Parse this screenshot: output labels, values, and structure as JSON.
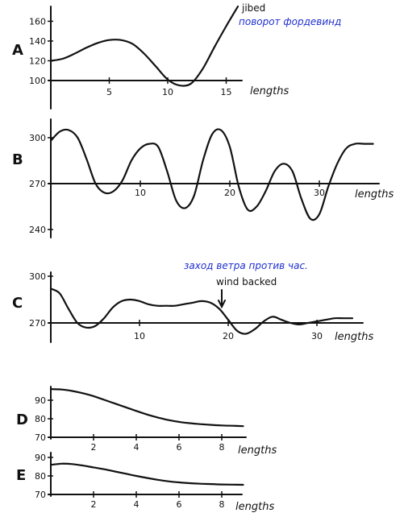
{
  "chart_data": [
    {
      "id": "A",
      "type": "line",
      "panel_label": "A",
      "x_unit_label": "lengths",
      "xlim": [
        0,
        16
      ],
      "ylim": [
        100,
        175
      ],
      "x_ticks": [
        5,
        10,
        15
      ],
      "y_ticks": [
        100,
        120,
        140,
        160
      ],
      "x_values": [
        0,
        1,
        2,
        3,
        4,
        5,
        6,
        7,
        8,
        9,
        10,
        11,
        12,
        13,
        14,
        15,
        16
      ],
      "series": [
        {
          "values": [
            120,
            122,
            127,
            133,
            138,
            141,
            141,
            137,
            127,
            114,
            101,
            95,
            97,
            112,
            134,
            155,
            175
          ]
        }
      ],
      "annotations": [
        {
          "x": 16,
          "y": 175,
          "text": "jibed",
          "color": "#111111"
        },
        {
          "x": 16,
          "y": 175,
          "text": "поворот фордевинд",
          "color": "#1f2fd0"
        }
      ]
    },
    {
      "id": "B",
      "type": "line",
      "panel_label": "B",
      "x_unit_label": "lengths",
      "xlim": [
        0,
        36
      ],
      "ylim": [
        235,
        310
      ],
      "x_ticks": [
        10,
        20,
        30
      ],
      "x_tick_labels": [
        "10",
        "20",
        "30"
      ],
      "y_ticks": [
        240,
        270,
        300
      ],
      "x_values": [
        0,
        1,
        2,
        3,
        4,
        5,
        6,
        7,
        8,
        9,
        10,
        11,
        12,
        13,
        14,
        15,
        16,
        17,
        18,
        19,
        20,
        21,
        22,
        23,
        24,
        25,
        26,
        27,
        28,
        29,
        30,
        31,
        32,
        33,
        34,
        35,
        36
      ],
      "series": [
        {
          "values": [
            298,
            304,
            305,
            300,
            286,
            270,
            264,
            265,
            272,
            285,
            293,
            296,
            294,
            278,
            259,
            254,
            262,
            285,
            302,
            305,
            294,
            268,
            253,
            255,
            265,
            278,
            283,
            278,
            260,
            247,
            250,
            268,
            283,
            293,
            296,
            296,
            296
          ]
        }
      ]
    },
    {
      "id": "C",
      "type": "line",
      "panel_label": "C",
      "x_unit_label": "lengths",
      "xlim": [
        0,
        34
      ],
      "ylim": [
        262,
        302
      ],
      "x_ticks": [
        10,
        20,
        30
      ],
      "y_ticks": [
        270,
        300
      ],
      "x_values": [
        0,
        1,
        2,
        3,
        4,
        5,
        6,
        7,
        8,
        9,
        10,
        11,
        12,
        13,
        14,
        15,
        16,
        17,
        18,
        19,
        20,
        21,
        22,
        23,
        24,
        25,
        26,
        27,
        28,
        29,
        30,
        31,
        32,
        33,
        34
      ],
      "series": [
        {
          "values": [
            292,
            289,
            279,
            270,
            267,
            268,
            273,
            280,
            284,
            285,
            284,
            282,
            281,
            281,
            281,
            282,
            283,
            284,
            283,
            279,
            272,
            265,
            263,
            266,
            271,
            274,
            272,
            270,
            269,
            270,
            271,
            272,
            273,
            273,
            273
          ]
        }
      ],
      "annotations": [
        {
          "x": 19,
          "y": 284,
          "text": "wind backed",
          "color": "#111111"
        },
        {
          "x": 19,
          "y": 284,
          "text": "заход ветра против час.",
          "color": "#1f2fd0"
        }
      ]
    },
    {
      "id": "D",
      "type": "line",
      "panel_label": "D",
      "x_unit_label": "lengths",
      "xlim": [
        0,
        9
      ],
      "ylim": [
        70,
        97
      ],
      "x_ticks": [
        2,
        4,
        6,
        8
      ],
      "y_ticks": [
        70,
        80,
        90
      ],
      "x_values": [
        0,
        0.5,
        1,
        1.5,
        2,
        2.5,
        3,
        3.5,
        4,
        4.5,
        5,
        5.5,
        6,
        6.5,
        7,
        7.5,
        8,
        8.5,
        9
      ],
      "series": [
        {
          "values": [
            96,
            95.8,
            95,
            93.8,
            92.2,
            90.2,
            88.2,
            86.2,
            84.2,
            82.3,
            80.7,
            79.3,
            78.3,
            77.6,
            77.1,
            76.7,
            76.4,
            76.2,
            76
          ]
        }
      ]
    },
    {
      "id": "E",
      "type": "line",
      "panel_label": "E",
      "x_unit_label": "lengths",
      "xlim": [
        0,
        9
      ],
      "ylim": [
        70,
        90
      ],
      "x_ticks": [
        2,
        4,
        6,
        8
      ],
      "y_ticks": [
        70,
        80,
        90
      ],
      "x_values": [
        0,
        0.5,
        1,
        1.5,
        2,
        2.5,
        3,
        3.5,
        4,
        4.5,
        5,
        5.5,
        6,
        6.5,
        7,
        7.5,
        8,
        8.5,
        9
      ],
      "series": [
        {
          "values": [
            86,
            86.6,
            86.4,
            85.6,
            84.6,
            83.6,
            82.4,
            81.2,
            80,
            78.9,
            77.9,
            77.1,
            76.5,
            76.1,
            75.8,
            75.6,
            75.4,
            75.3,
            75.2
          ]
        }
      ]
    }
  ]
}
